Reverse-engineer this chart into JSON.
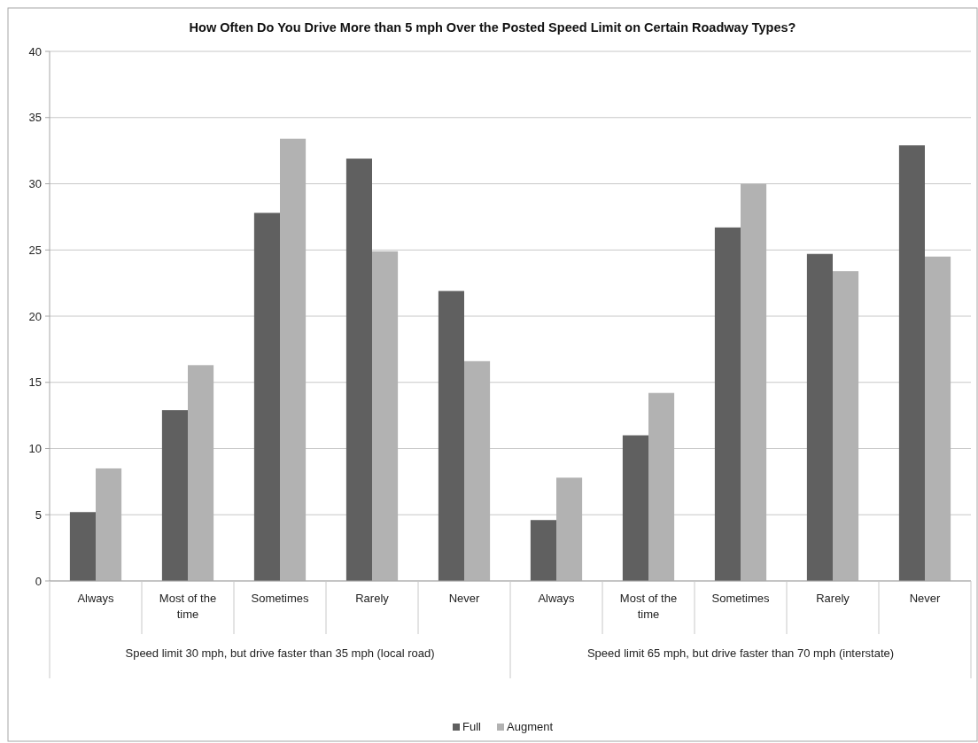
{
  "chart_data": {
    "type": "bar",
    "title": "How Often Do You Drive More than 5 mph Over the Posted Speed Limit on Certain Roadway Types?",
    "categories": [
      "Always",
      "Most of the time",
      "Sometimes",
      "Rarely",
      "Never",
      "Always",
      "Most of the time",
      "Sometimes",
      "Rarely",
      "Never"
    ],
    "series": [
      {
        "name": "Full",
        "color": "#606060",
        "values": [
          5.2,
          12.9,
          27.8,
          31.9,
          21.9,
          4.6,
          11.0,
          26.7,
          24.7,
          32.9
        ]
      },
      {
        "name": "Augment",
        "color": "#b2b2b2",
        "values": [
          8.5,
          16.3,
          33.4,
          24.9,
          16.6,
          7.8,
          14.2,
          30.0,
          23.4,
          24.5
        ]
      }
    ],
    "annotations": [
      "Speed limit 30 mph, but drive faster than 35 mph (local road)",
      "Speed limit 65 mph, but drive faster than 70 mph (interstate)"
    ],
    "ylim": [
      0,
      40
    ],
    "yticks": [
      0,
      5,
      10,
      15,
      20,
      25,
      30,
      35,
      40
    ],
    "grid": "y",
    "legend": "bottom"
  }
}
